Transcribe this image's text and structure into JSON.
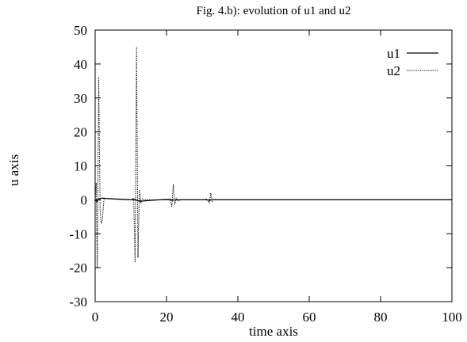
{
  "chart_data": {
    "type": "line",
    "title": "Fig. 4.b): evolution of u1 and u2",
    "xlabel": "time axis",
    "ylabel": "u axis",
    "xlim": [
      0,
      100
    ],
    "ylim": [
      -30,
      50
    ],
    "xticks": [
      "0",
      "20",
      "40",
      "60",
      "80",
      "100"
    ],
    "yticks": [
      "-30",
      "-20",
      "-10",
      "0",
      "10",
      "20",
      "30",
      "40",
      "50"
    ],
    "grid": false,
    "legend_position": "top-right",
    "series": [
      {
        "name": "u1",
        "style": "solid",
        "color": "#000000",
        "x": [
          0,
          0.5,
          1,
          2,
          3,
          5,
          8,
          10,
          11,
          12,
          13,
          15,
          18,
          20,
          21,
          22,
          23,
          25,
          30,
          31,
          32,
          33,
          35,
          40,
          50,
          60,
          70,
          80,
          90,
          100
        ],
        "y": [
          0,
          -0.5,
          0.3,
          0.5,
          0.4,
          0.3,
          0.1,
          0.0,
          0.1,
          -0.3,
          -0.4,
          -0.2,
          0.0,
          0.1,
          0.0,
          -0.1,
          0.0,
          0.0,
          0.0,
          0.0,
          -0.1,
          0.0,
          0.0,
          0.0,
          0.0,
          0.0,
          0.0,
          0.0,
          0.0,
          0.0
        ]
      },
      {
        "name": "u2",
        "style": "dotted",
        "color": "#000000",
        "x": [
          0,
          0.3,
          0.6,
          1.0,
          1.4,
          1.7,
          2.0,
          2.5,
          3.5,
          5,
          8,
          10,
          10.8,
          11.2,
          11.6,
          12.0,
          12.4,
          12.8,
          13.2,
          14,
          16,
          18,
          20,
          21.0,
          21.5,
          21.9,
          22.3,
          22.7,
          23.2,
          24,
          26,
          30,
          31.5,
          32.0,
          32.4,
          32.8,
          33.3,
          34,
          40,
          50,
          60,
          70,
          80,
          90,
          100
        ],
        "y": [
          0,
          5,
          -20,
          36,
          -3,
          -7,
          -6,
          0.5,
          0.3,
          0.2,
          0.1,
          0.0,
          0.5,
          -18.5,
          45,
          -17,
          3,
          -1,
          0.3,
          0.0,
          0.0,
          0.0,
          0.0,
          0.3,
          -2,
          4.5,
          -1.5,
          0.5,
          -0.3,
          0.0,
          0.0,
          0.0,
          0.2,
          -1,
          2,
          -0.5,
          0.2,
          0.0,
          0.0,
          0.0,
          0.0,
          0.0,
          0.0,
          0.0,
          0.0
        ]
      }
    ]
  }
}
